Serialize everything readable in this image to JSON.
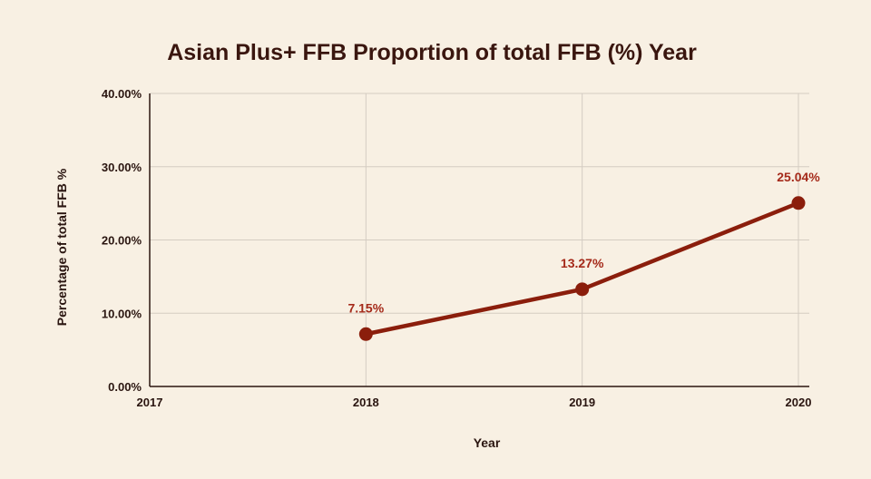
{
  "chart_data": {
    "type": "line",
    "title": "Asian Plus+ FFB Proportion of total FFB (%) Year",
    "xlabel": "Year",
    "ylabel": "Percentage of total FFB %",
    "x_ticks": [
      "2017",
      "2018",
      "2019",
      "2020"
    ],
    "y_ticks": [
      "0.00%",
      "10.00%",
      "20.00%",
      "30.00%",
      "40.00%"
    ],
    "xlim": [
      2017,
      2020
    ],
    "ylim": [
      0,
      40
    ],
    "grid": true,
    "legend": "none",
    "series": [
      {
        "x": [
          2018,
          2019,
          2020
        ],
        "values": [
          7.15,
          13.27,
          25.04
        ],
        "labels": [
          "7.15%",
          "13.27%",
          "25.04%"
        ],
        "color": "#8b1e0c"
      }
    ]
  },
  "colors": {
    "background": "#f8f0e3",
    "grid": "#d4ccc2",
    "axis": "#2a1510",
    "title": "#3a160f",
    "label": "#a52a1a"
  }
}
